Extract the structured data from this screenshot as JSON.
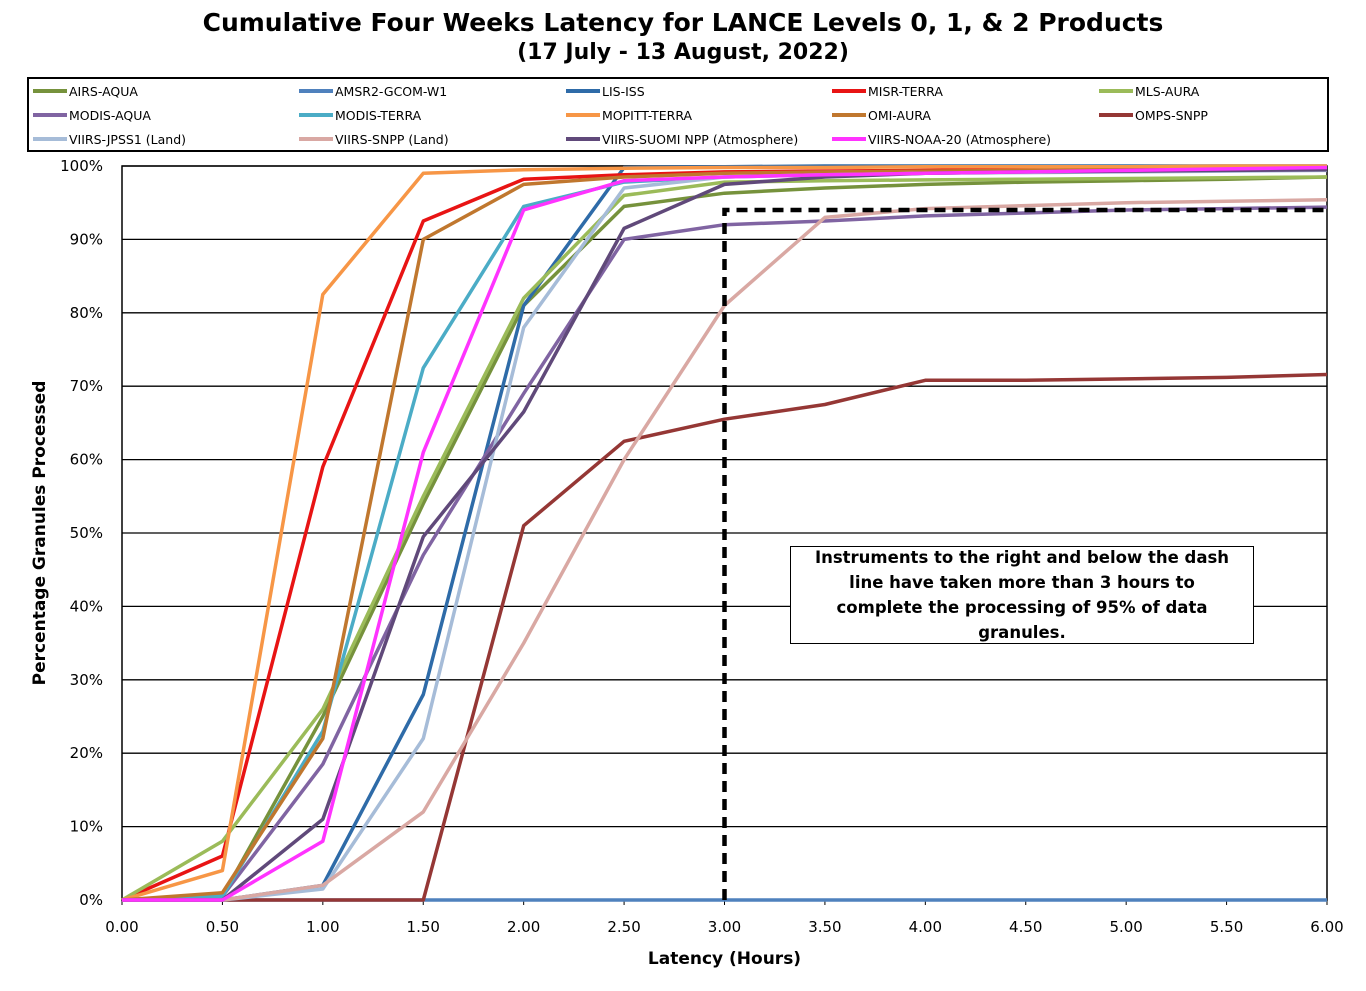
{
  "title": "Cumulative Four Weeks Latency  for LANCE Levels 0, 1, & 2 Products",
  "subtitle": "(17  July   -  13  August,  2022)",
  "annotation": "Instruments to the right and below the dash line have taken more than 3 hours to complete the processing of 95% of data granules.",
  "chart_data": {
    "type": "line",
    "title": "Cumulative Four Weeks Latency  for LANCE Levels 0, 1, & 2 Products",
    "subtitle": "(17  July   -  13  August,  2022)",
    "xlabel": "Latency (Hours)",
    "ylabel": "Percentage Granules Processed",
    "x": [
      0,
      0.5,
      1,
      1.5,
      2,
      2.5,
      3,
      3.5,
      4,
      4.5,
      5,
      5.5,
      6
    ],
    "xlim": [
      0,
      6
    ],
    "ylim": [
      0,
      100
    ],
    "x_tick_labels": [
      "0.00",
      "0.50",
      "1.00",
      "1.50",
      "2.00",
      "2.50",
      "3.00",
      "3.50",
      "4.00",
      "4.50",
      "5.00",
      "5.50",
      "6.00"
    ],
    "y_tick_labels": [
      "0%",
      "10%",
      "20%",
      "30%",
      "40%",
      "50%",
      "60%",
      "70%",
      "80%",
      "90%",
      "100%"
    ],
    "y_ticks": [
      0,
      10,
      20,
      30,
      40,
      50,
      60,
      70,
      80,
      90,
      100
    ],
    "grid": "horizontal",
    "legend_position": "top",
    "series": [
      {
        "name": "AIRS-AQUA",
        "color": "#76923C",
        "values": [
          0,
          0.5,
          25,
          54,
          81,
          94.5,
          96.3,
          97,
          97.5,
          97.8,
          98,
          98.2,
          98.5
        ]
      },
      {
        "name": "AMSR2-GCOM-W1",
        "color": "#4F81BD",
        "values": [
          0,
          0,
          0,
          0,
          0,
          0,
          0,
          0,
          0,
          0,
          0,
          0,
          0
        ]
      },
      {
        "name": "LIS-ISS",
        "color": "#2E6BA8",
        "values": [
          0,
          0,
          2,
          28,
          81,
          99.8,
          99.9,
          100,
          100,
          100,
          100,
          100,
          100
        ]
      },
      {
        "name": "MISR-TERRA",
        "color": "#E81414",
        "values": [
          0,
          6,
          59,
          92.5,
          98.2,
          98.8,
          99.2,
          99.3,
          99.4,
          99.5,
          99.5,
          99.6,
          99.6
        ]
      },
      {
        "name": "MLS-AURA",
        "color": "#9BBB59",
        "values": [
          0,
          8,
          26,
          55,
          82,
          96,
          97.8,
          98,
          98.1,
          98.2,
          98.3,
          98.4,
          98.5
        ]
      },
      {
        "name": "MODIS-AQUA",
        "color": "#8064A2",
        "values": [
          0,
          0.5,
          18.5,
          47,
          69,
          90,
          92,
          92.5,
          93.2,
          93.6,
          94,
          94.2,
          94.4
        ]
      },
      {
        "name": "MODIS-TERRA",
        "color": "#4BACC6",
        "values": [
          0,
          0.5,
          23,
          72.5,
          94.5,
          97.8,
          98.5,
          98.8,
          99,
          99.2,
          99.3,
          99.4,
          99.5
        ]
      },
      {
        "name": "MOPITT-TERRA",
        "color": "#F79646",
        "values": [
          0,
          4,
          82.5,
          99,
          99.5,
          99.7,
          99.8,
          99.8,
          99.9,
          99.9,
          99.9,
          100,
          100
        ]
      },
      {
        "name": "OMI-AURA",
        "color": "#C0772E",
        "values": [
          0,
          1,
          22,
          90,
          97.5,
          98.5,
          99,
          99.2,
          99.3,
          99.4,
          99.5,
          99.5,
          99.6
        ]
      },
      {
        "name": "OMPS-SNPP",
        "color": "#953735",
        "values": [
          0,
          0,
          0,
          0,
          51,
          62.5,
          65.5,
          67.5,
          70.8,
          70.8,
          71,
          71.2,
          71.6
        ]
      },
      {
        "name": "VIIRS-JPSS1 (Land)",
        "color": "#A6BCD8",
        "values": [
          0,
          0,
          1.5,
          22,
          78,
          97,
          98.5,
          98.8,
          99,
          99.1,
          99.2,
          99.3,
          99.4
        ]
      },
      {
        "name": "VIIRS-SNPP (Land)",
        "color": "#D9A8A3",
        "values": [
          0,
          0,
          2,
          12,
          35,
          60,
          81,
          93,
          94.2,
          94.6,
          95,
          95.2,
          95.4
        ]
      },
      {
        "name": "VIIRS-SUOMI NPP (Atmosphere)",
        "color": "#60497A",
        "values": [
          0,
          0,
          11,
          49.5,
          66.5,
          91.5,
          97.5,
          98.5,
          99,
          99.2,
          99.3,
          99.4,
          99.5
        ]
      },
      {
        "name": "VIIRS-NOAA-20 (Atmosphere)",
        "color": "#FF33FF",
        "values": [
          0,
          0,
          8,
          61,
          94,
          98,
          98.5,
          98.8,
          99,
          99.2,
          99.4,
          99.6,
          99.8
        ]
      }
    ],
    "threshold_line": {
      "x": [
        3,
        3,
        6
      ],
      "y": [
        0,
        94,
        94
      ],
      "style": "dashed",
      "color": "#000000"
    }
  }
}
